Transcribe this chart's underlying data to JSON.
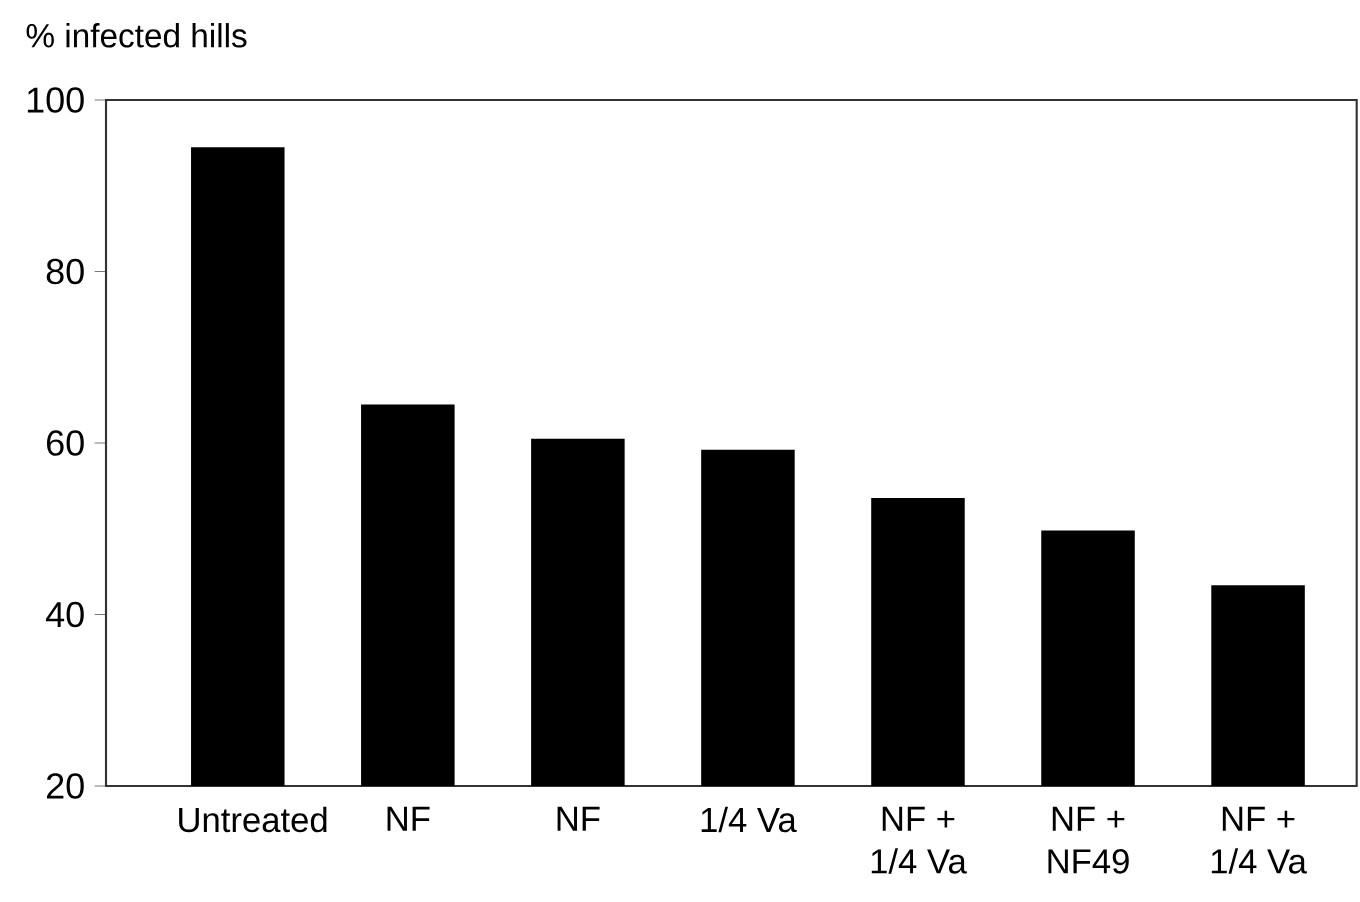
{
  "chart_data": {
    "type": "bar",
    "ylabel": "% infected hills",
    "categories": [
      "Untreated",
      "NF",
      "NF",
      "1/4 Va",
      "NF + 1/4 Va",
      "NF + NF49",
      "NF + 1/4 Va"
    ],
    "values": [
      94.5,
      64.5,
      60.5,
      59.2,
      53.6,
      49.8,
      43.4
    ],
    "color": "#000000",
    "ylim": [
      20,
      100
    ],
    "yticks": [
      20,
      40,
      60,
      80,
      100
    ]
  }
}
